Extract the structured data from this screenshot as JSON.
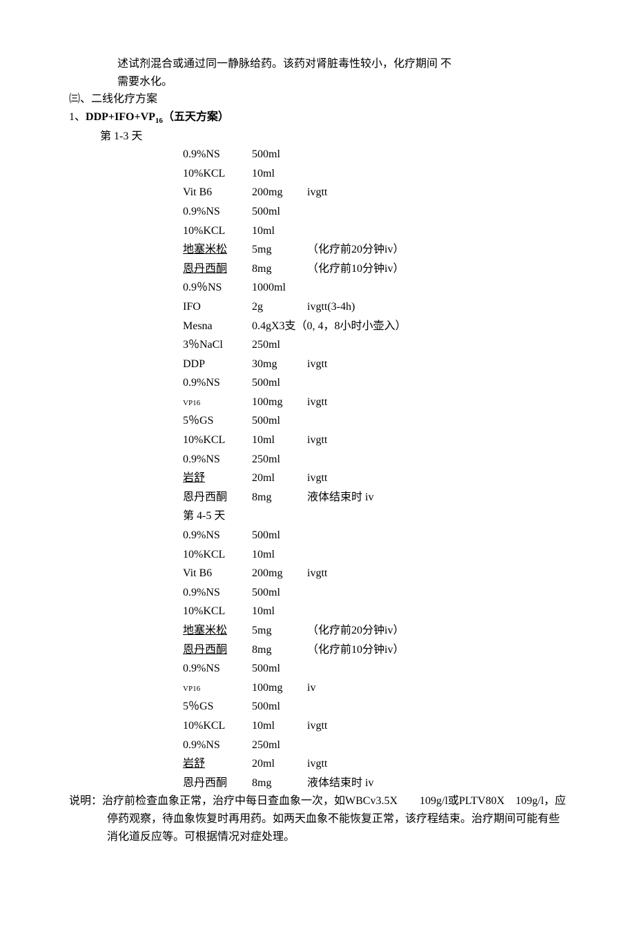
{
  "intro": {
    "line1": "述试剂混合或通过同一静脉给药。该药对肾脏毒性较小，化疗期间 不",
    "line2": "需要水化。"
  },
  "section3": "㈢、二线化疗方案",
  "plan1_title_prefix": "1、",
  "plan1_title": "DDP+IFO+VP",
  "plan1_title_sub": "16",
  "plan1_title_suffix": "（五天方案）",
  "day13": "第 1-3 天",
  "rows_a": [
    {
      "drug": "0.9%NS",
      "dose": "500ml",
      "route": ""
    },
    {
      "drug": "10%KCL",
      "dose": "10ml",
      "route": ""
    },
    {
      "drug": "Vit B6",
      "dose": " 200mg",
      "route": "ivgtt"
    },
    {
      "drug": "0.9%NS",
      "dose": "500ml",
      "route": ""
    },
    {
      "drug": "10%KCL",
      "dose": "10ml",
      "route": ""
    },
    {
      "drug": "地塞米松",
      "dose": "  5mg",
      "route": "（化疗前20分钟iv）",
      "underline": true
    },
    {
      "drug": "恩丹西酮",
      "dose": "  8mg",
      "route": " （化疗前10分钟iv）",
      "underline": true
    },
    {
      "drug": "0.9％NS",
      "dose": "1000ml",
      "route": ""
    },
    {
      "drug": "IFO",
      "dose": "2g",
      "route": "ivgtt(3-4h)"
    },
    {
      "drug": "Mesna",
      "dose": "0.4gX3支",
      "route": "（0, 4，8小时小壶入）",
      "merge": true
    },
    {
      "drug": "3％NaCl",
      "dose": "250ml",
      "route": ""
    },
    {
      "drug": "DDP",
      "dose": "30mg",
      "route": "ivgtt"
    },
    {
      "drug": "0.9%NS",
      "dose": "500ml",
      "route": ""
    },
    {
      "drug": "VP16",
      "dose": "100mg",
      "route": "ivgtt",
      "small": true
    },
    {
      "drug": "5％GS",
      "dose": "500ml",
      "route": ""
    },
    {
      "drug": "10%KCL",
      "dose": "10ml",
      "route": "ivgtt"
    },
    {
      "drug": "0.9%NS",
      "dose": "250ml",
      "route": ""
    },
    {
      "drug": "岩舒",
      "dose": "20ml",
      "route": "ivgtt",
      "underline": true
    },
    {
      "drug": "恩丹西酮",
      "dose": "   8mg",
      "route": "液体结束时 iv"
    }
  ],
  "day45": "第 4-5 天",
  "rows_b": [
    {
      "drug": "0.9%NS",
      "dose": "500ml",
      "route": ""
    },
    {
      "drug": "10%KCL",
      "dose": "10ml",
      "route": ""
    },
    {
      "drug": "Vit B6",
      "dose": " 200mg",
      "route": "ivgtt"
    },
    {
      "drug": "0.9%NS",
      "dose": "500ml",
      "route": ""
    },
    {
      "drug": "10%KCL",
      "dose": "10ml",
      "route": ""
    },
    {
      "drug": "地塞米松",
      "dose": "  5mg",
      "route": "（化疗前20分钟iv）",
      "underline": true
    },
    {
      "drug": "恩丹西酮",
      "dose": "  8mg",
      "route": " （化疗前10分钟iv）",
      "underline": true
    },
    {
      "drug": "0.9%NS",
      "dose": "500ml",
      "route": ""
    },
    {
      "drug": "VP16",
      "dose": "100mg",
      "route": "iv",
      "small": true
    },
    {
      "drug": "5％GS",
      "dose": "500ml",
      "route": ""
    },
    {
      "drug": "10%KCL",
      "dose": "10ml",
      "route": "ivgtt"
    },
    {
      "drug": "0.9%NS",
      "dose": "250ml",
      "route": ""
    },
    {
      "drug": "岩舒",
      "dose": "20ml",
      "route": "ivgtt",
      "underline": true
    },
    {
      "drug": "恩丹西酮",
      "dose": "   8mg",
      "route": "液体结束时 iv"
    }
  ],
  "note_label": "说明：",
  "note_body": "治疗前检查血象正常，治疗中每日查血象一次，如WBCv3.5X　　109g/l或PLTV80X　109g/l，应停药观察，待血象恢复时再用药。如两天血象不能恢复正常，该疗程结束。治疗期间可能有些消化道反应等。可根据情况对症处理。"
}
